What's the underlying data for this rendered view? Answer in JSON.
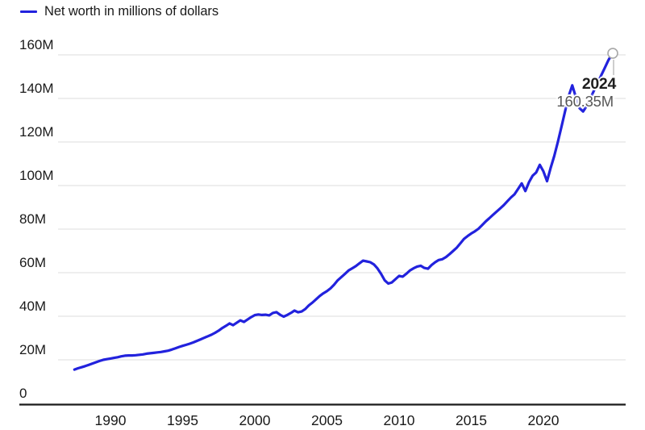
{
  "legend": {
    "label": "Net worth in millions of dollars"
  },
  "annotation": {
    "year_label": "2024",
    "value_label": "160.35M"
  },
  "colors": {
    "line": "#2222dd",
    "grid": "#e4e4e4",
    "axis": "#1a1a1a",
    "tick_label": "#1a1a1a",
    "marker_stroke": "#a8a8a8",
    "leader": "#bdbdbd",
    "marker_fill": "#ffffff"
  },
  "chart_data": {
    "type": "line",
    "title": "Net worth in millions of dollars",
    "series_name": "Net worth",
    "unit": "millions of dollars",
    "xlabel": "",
    "ylabel": "",
    "grid": "horizontal",
    "legend_position": "top-left",
    "ylim": [
      0,
      160
    ],
    "xlim": [
      1986.4,
      2025.7
    ],
    "y_ticks": [
      {
        "value": 0,
        "label": "0"
      },
      {
        "value": 20,
        "label": "20M"
      },
      {
        "value": 40,
        "label": "40M"
      },
      {
        "value": 60,
        "label": "60M"
      },
      {
        "value": 80,
        "label": "80M"
      },
      {
        "value": 100,
        "label": "100M"
      },
      {
        "value": 120,
        "label": "120M"
      },
      {
        "value": 140,
        "label": "140M"
      },
      {
        "value": 160,
        "label": "160M"
      }
    ],
    "x_ticks": [
      {
        "value": 1990,
        "label": "1990"
      },
      {
        "value": 1995,
        "label": "1995"
      },
      {
        "value": 2000,
        "label": "2000"
      },
      {
        "value": 2005,
        "label": "2005"
      },
      {
        "value": 2010,
        "label": "2010"
      },
      {
        "value": 2015,
        "label": "2015"
      },
      {
        "value": 2020,
        "label": "2020"
      }
    ],
    "end_point": {
      "x": 2024.75,
      "value": 160.35,
      "label_year": "2024",
      "label_value": "160.35M"
    },
    "x": [
      1987.5,
      1987.75,
      1988,
      1988.25,
      1988.5,
      1988.75,
      1989,
      1989.25,
      1989.5,
      1989.75,
      1990,
      1990.25,
      1990.5,
      1990.75,
      1991,
      1991.25,
      1991.5,
      1991.75,
      1992,
      1992.25,
      1992.5,
      1992.75,
      1993,
      1993.25,
      1993.5,
      1993.75,
      1994,
      1994.25,
      1994.5,
      1994.75,
      1995,
      1995.25,
      1995.5,
      1995.75,
      1996,
      1996.25,
      1996.5,
      1996.75,
      1997,
      1997.25,
      1997.5,
      1997.75,
      1998,
      1998.25,
      1998.5,
      1998.75,
      1999,
      1999.25,
      1999.5,
      1999.75,
      2000,
      2000.25,
      2000.5,
      2000.75,
      2001,
      2001.25,
      2001.5,
      2001.75,
      2002,
      2002.25,
      2002.5,
      2002.75,
      2003,
      2003.25,
      2003.5,
      2003.75,
      2004,
      2004.25,
      2004.5,
      2004.75,
      2005,
      2005.25,
      2005.5,
      2005.75,
      2006,
      2006.25,
      2006.5,
      2006.75,
      2007,
      2007.25,
      2007.5,
      2007.75,
      2008,
      2008.25,
      2008.5,
      2008.75,
      2009,
      2009.25,
      2009.5,
      2009.75,
      2010,
      2010.25,
      2010.5,
      2010.75,
      2011,
      2011.25,
      2011.5,
      2011.75,
      2012,
      2012.25,
      2012.5,
      2012.75,
      2013,
      2013.25,
      2013.5,
      2013.75,
      2014,
      2014.25,
      2014.5,
      2014.75,
      2015,
      2015.25,
      2015.5,
      2015.75,
      2016,
      2016.25,
      2016.5,
      2016.75,
      2017,
      2017.25,
      2017.5,
      2017.75,
      2018,
      2018.25,
      2018.5,
      2018.75,
      2019,
      2019.25,
      2019.5,
      2019.75,
      2020,
      2020.25,
      2020.5,
      2020.75,
      2021,
      2021.25,
      2021.5,
      2021.75,
      2022,
      2022.25,
      2022.5,
      2022.75,
      2023,
      2023.25,
      2023.5,
      2023.75,
      2024,
      2024.25,
      2024.5,
      2024.75
    ],
    "values": [
      15.5,
      16.1,
      16.6,
      17.1,
      17.7,
      18.3,
      18.9,
      19.5,
      20.0,
      20.3,
      20.6,
      20.9,
      21.2,
      21.6,
      21.9,
      22.0,
      22.0,
      22.1,
      22.3,
      22.5,
      22.8,
      23.0,
      23.2,
      23.4,
      23.6,
      23.9,
      24.2,
      24.7,
      25.3,
      25.9,
      26.4,
      26.9,
      27.4,
      28.0,
      28.7,
      29.4,
      30.1,
      30.8,
      31.5,
      32.4,
      33.4,
      34.6,
      35.6,
      36.7,
      35.9,
      37.0,
      38.1,
      37.4,
      38.5,
      39.6,
      40.5,
      40.8,
      40.6,
      40.7,
      40.4,
      41.5,
      41.9,
      40.7,
      39.8,
      40.6,
      41.5,
      42.6,
      41.8,
      42.2,
      43.3,
      45.0,
      46.3,
      47.8,
      49.3,
      50.5,
      51.5,
      52.8,
      54.5,
      56.5,
      58.0,
      59.5,
      61.0,
      62.0,
      63.0,
      64.3,
      65.5,
      65.2,
      64.8,
      63.8,
      62.0,
      59.5,
      56.5,
      55.0,
      55.5,
      57.0,
      58.5,
      58.2,
      59.5,
      61.0,
      62.0,
      62.8,
      63.2,
      62.2,
      61.8,
      63.5,
      64.8,
      65.8,
      66.2,
      67.2,
      68.5,
      70.0,
      71.5,
      73.5,
      75.5,
      76.8,
      78.0,
      79.0,
      80.2,
      81.8,
      83.5,
      85.0,
      86.5,
      88.0,
      89.5,
      91.0,
      92.8,
      94.5,
      96.0,
      98.5,
      101.0,
      97.5,
      101.5,
      104.5,
      106.0,
      109.5,
      106.5,
      102.0,
      108.0,
      113.5,
      120.0,
      127.0,
      134.0,
      141.0,
      146.0,
      140.5,
      135.5,
      134.0,
      136.5,
      140.0,
      143.5,
      147.0,
      150.5,
      154.0,
      157.5,
      160.35
    ]
  }
}
